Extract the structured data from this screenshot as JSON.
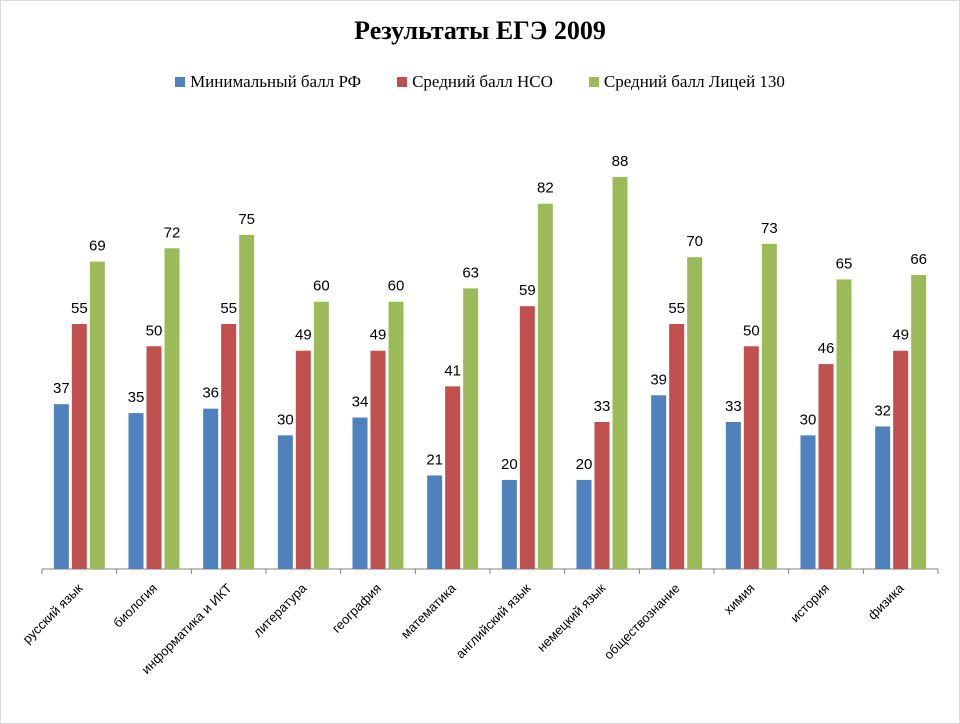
{
  "chart_data": {
    "type": "bar",
    "title": "Результаты ЕГЭ 2009",
    "categories": [
      "русский язык",
      "биология",
      "информатика и ИКТ",
      "литература",
      "география",
      "математика",
      "английский язык",
      "немецкий язык",
      "обществознание",
      "химия",
      "история",
      "физика"
    ],
    "series": [
      {
        "name": "Минимальный балл РФ",
        "color": "#4f81bd",
        "values": [
          37,
          35,
          36,
          30,
          34,
          21,
          20,
          20,
          39,
          33,
          30,
          32
        ]
      },
      {
        "name": "Средний балл НСО",
        "color": "#c0504d",
        "values": [
          55,
          50,
          55,
          49,
          49,
          41,
          59,
          33,
          55,
          50,
          46,
          49
        ]
      },
      {
        "name": "Средний балл Лицей 130",
        "color": "#9bbb59",
        "values": [
          69,
          72,
          75,
          60,
          60,
          63,
          82,
          88,
          70,
          73,
          65,
          66
        ]
      }
    ],
    "ylim": [
      0,
      88
    ],
    "grid": false,
    "legend_position": "top",
    "data_labels": true
  }
}
